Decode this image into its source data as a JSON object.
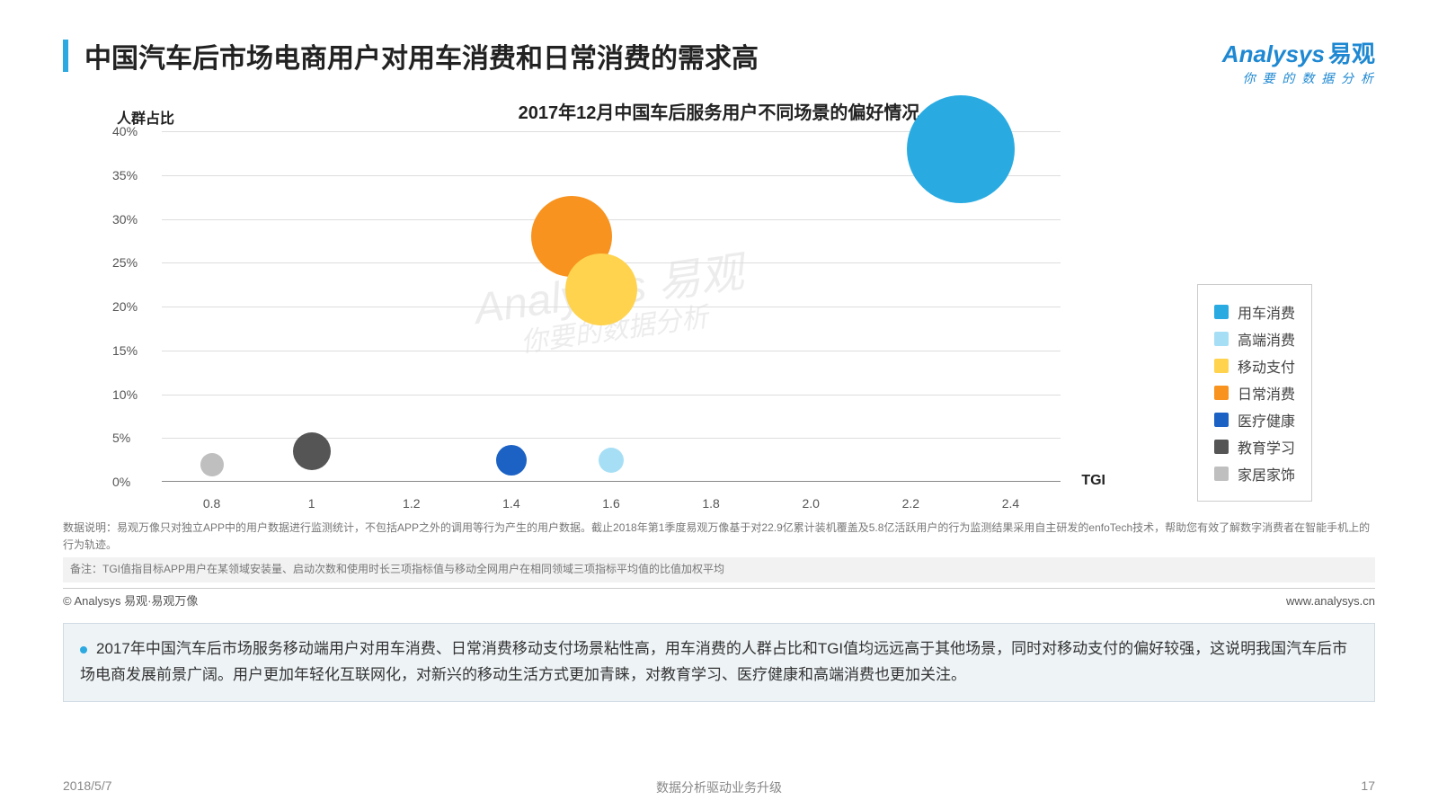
{
  "header": {
    "title": "中国汽车后市场电商用户对用车消费和日常消费的需求高",
    "accent_color": "#2ca9e1",
    "logo_main": "Analysys",
    "logo_cn": "易观",
    "logo_sub": "你 要 的 数 据 分 析",
    "logo_color": "#1e88d2"
  },
  "subtitle": "2017年12月中国车后服务用户不同场景的偏好情况",
  "chart": {
    "type": "bubble",
    "y_label": "人群占比",
    "x_label": "TGI",
    "background_color": "#ffffff",
    "grid_color": "#dddddd",
    "axis_color": "#888888",
    "xlim": [
      0.7,
      2.5
    ],
    "ylim": [
      0,
      40
    ],
    "y_ticks": [
      {
        "v": 0,
        "label": "0%"
      },
      {
        "v": 5,
        "label": "5%"
      },
      {
        "v": 10,
        "label": "10%"
      },
      {
        "v": 15,
        "label": "15%"
      },
      {
        "v": 20,
        "label": "20%"
      },
      {
        "v": 25,
        "label": "25%"
      },
      {
        "v": 30,
        "label": "30%"
      },
      {
        "v": 35,
        "label": "35%"
      },
      {
        "v": 40,
        "label": "40%"
      }
    ],
    "x_ticks": [
      {
        "v": 0.8,
        "label": "0.8"
      },
      {
        "v": 1.0,
        "label": "1"
      },
      {
        "v": 1.2,
        "label": "1.2"
      },
      {
        "v": 1.4,
        "label": "1.4"
      },
      {
        "v": 1.6,
        "label": "1.6"
      },
      {
        "v": 1.8,
        "label": "1.8"
      },
      {
        "v": 2.0,
        "label": "2.0"
      },
      {
        "v": 2.2,
        "label": "2.2"
      },
      {
        "v": 2.4,
        "label": "2.4"
      }
    ],
    "series": [
      {
        "name": "用车消费",
        "color": "#29abe2",
        "x": 2.3,
        "y": 38,
        "size": 120
      },
      {
        "name": "高端消费",
        "color": "#a6dff5",
        "x": 1.6,
        "y": 2.5,
        "size": 28
      },
      {
        "name": "移动支付",
        "color": "#ffd34e",
        "x": 1.58,
        "y": 22,
        "size": 80
      },
      {
        "name": "日常消费",
        "color": "#f7931e",
        "x": 1.52,
        "y": 28,
        "size": 90
      },
      {
        "name": "医疗健康",
        "color": "#1b62c4",
        "x": 1.4,
        "y": 2.5,
        "size": 34
      },
      {
        "name": "教育学习",
        "color": "#555555",
        "x": 1.0,
        "y": 3.5,
        "size": 42
      },
      {
        "name": "家居家饰",
        "color": "#bfbfbf",
        "x": 0.8,
        "y": 2.0,
        "size": 26
      }
    ],
    "legend_title_fontsize": 16,
    "axis_label_fontsize": 16,
    "tick_fontsize": 14
  },
  "watermark": {
    "line1": "Analysys 易观",
    "line2": "你要的数据分析"
  },
  "notes": {
    "data_note": "数据说明：易观万像只对独立APP中的用户数据进行监测统计，不包括APP之外的调用等行为产生的用户数据。截止2018年第1季度易观万像基于对22.9亿累计装机覆盖及5.8亿活跃用户的行为监测结果采用自主研发的enfoTech技术，帮助您有效了解数字消费者在智能手机上的行为轨迹。",
    "remark": "备注：TGI值指目标APP用户在某领域安装量、启动次数和使用时长三项指标值与移动全网用户在相同领域三项指标平均值的比值加权平均",
    "source_left": "© Analysys 易观·易观万像",
    "source_right": "www.analysys.cn"
  },
  "callout": "2017年中国汽车后市场服务移动端用户对用车消费、日常消费移动支付场景粘性高，用车消费的人群占比和TGI值均远远高于其他场景，同时对移动支付的偏好较强，这说明我国汽车后市场电商发展前景广阔。用户更加年轻化互联网化，对新兴的移动生活方式更加青睐，对教育学习、医疗健康和高端消费也更加关注。",
  "footer": {
    "date": "2018/5/7",
    "center": "数据分析驱动业务升级",
    "page": "17"
  }
}
